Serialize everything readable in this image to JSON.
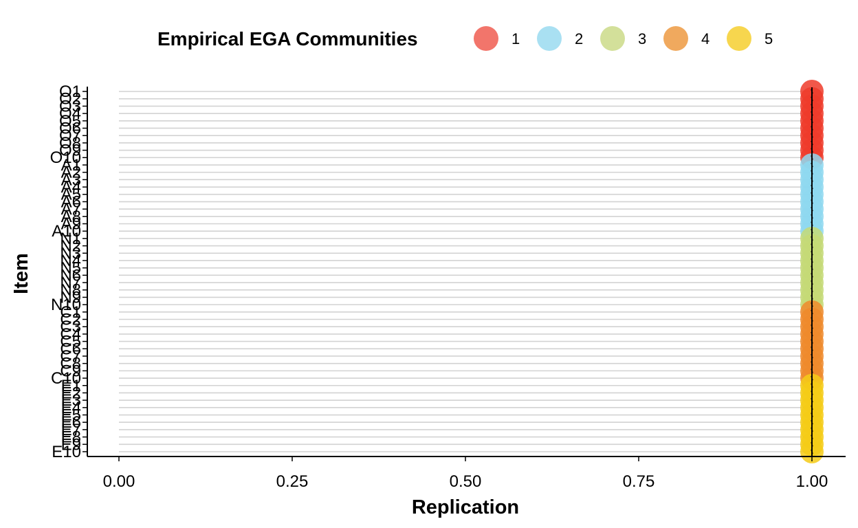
{
  "chart_data": {
    "type": "scatter",
    "title": "",
    "xlabel": "Replication",
    "ylabel": "Item",
    "xlim": [
      0,
      1
    ],
    "xticks": [
      "0.00",
      "0.25",
      "0.50",
      "0.75",
      "1.00"
    ],
    "xtick_values": [
      0,
      0.25,
      0.5,
      0.75,
      1.0
    ],
    "legend": {
      "title": "Empirical EGA Communities",
      "position": "top",
      "entries": [
        {
          "label": "1",
          "color": "#F2756B"
        },
        {
          "label": "2",
          "color": "#A9E0F2"
        },
        {
          "label": "3",
          "color": "#D3E09A"
        },
        {
          "label": "4",
          "color": "#F0A95E"
        },
        {
          "label": "5",
          "color": "#F7D64E"
        }
      ]
    },
    "point_colors": {
      "1": "#EE3B2A",
      "2": "#8ED8F0",
      "3": "#C4D975",
      "4": "#EF8A2B",
      "5": "#F5CB16"
    },
    "items": [
      "O1",
      "O2",
      "O3",
      "O4",
      "O5",
      "O6",
      "O7",
      "O8",
      "O9",
      "O10",
      "A1",
      "A2",
      "A3",
      "A4",
      "A5",
      "A6",
      "A7",
      "A8",
      "A9",
      "A10",
      "N1",
      "N2",
      "N3",
      "N4",
      "N5",
      "N6",
      "N7",
      "N8",
      "N9",
      "N10",
      "C1",
      "C2",
      "C3",
      "C4",
      "C5",
      "C6",
      "C7",
      "C8",
      "C9",
      "C10",
      "E1",
      "E2",
      "E3",
      "E4",
      "E5",
      "E6",
      "E7",
      "E8",
      "E9",
      "E10"
    ],
    "communities": [
      1,
      1,
      1,
      1,
      1,
      1,
      1,
      1,
      1,
      1,
      2,
      2,
      2,
      2,
      2,
      2,
      2,
      2,
      2,
      2,
      3,
      3,
      3,
      3,
      3,
      3,
      3,
      3,
      3,
      3,
      4,
      4,
      4,
      4,
      4,
      4,
      4,
      4,
      4,
      4,
      5,
      5,
      5,
      5,
      5,
      5,
      5,
      5,
      5,
      5
    ],
    "values": [
      1,
      1,
      1,
      1,
      1,
      1,
      1,
      1,
      1,
      1,
      1,
      1,
      1,
      1,
      1,
      1,
      1,
      1,
      1,
      1,
      1,
      1,
      1,
      1,
      1,
      1,
      1,
      1,
      1,
      1,
      1,
      1,
      1,
      1,
      1,
      1,
      1,
      1,
      1,
      1,
      1,
      1,
      1,
      1,
      1,
      1,
      1,
      1,
      1,
      1
    ],
    "grid": true
  }
}
